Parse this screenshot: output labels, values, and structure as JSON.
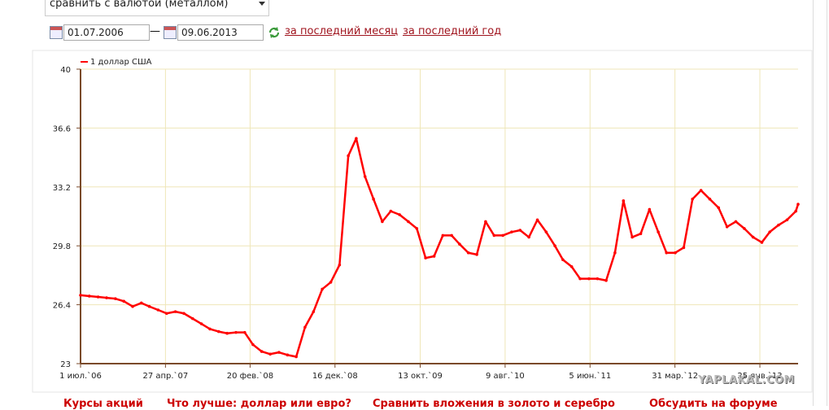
{
  "controls": {
    "compare_select": "сравнить с валютой (металлом)",
    "date_from": "01.07.2006",
    "date_separator": "—",
    "date_to": "09.06.2013",
    "links": [
      "за последний месяц",
      "за последний год"
    ]
  },
  "chart_data": {
    "type": "line",
    "x": [
      "2006-07-01",
      "2006-08-01",
      "2006-09-01",
      "2006-10-01",
      "2006-11-01",
      "2006-12-01",
      "2007-01-01",
      "2007-02-01",
      "2007-03-01",
      "2007-04-01",
      "2007-05-01",
      "2007-06-01",
      "2007-07-01",
      "2007-08-01",
      "2007-09-01",
      "2007-10-01",
      "2007-11-01",
      "2007-12-01",
      "2008-01-01",
      "2008-02-01",
      "2008-03-01",
      "2008-04-01",
      "2008-05-01",
      "2008-06-01",
      "2008-07-01",
      "2008-08-01",
      "2008-09-01",
      "2008-10-01",
      "2008-11-01",
      "2008-12-01",
      "2009-01-01",
      "2009-02-01",
      "2009-03-01",
      "2009-04-01",
      "2009-05-01",
      "2009-06-01",
      "2009-07-01",
      "2009-08-01",
      "2009-09-01",
      "2009-10-01",
      "2009-11-01",
      "2009-12-01",
      "2010-01-01",
      "2010-02-01",
      "2010-03-01",
      "2010-04-01",
      "2010-05-01",
      "2010-06-01",
      "2010-07-01",
      "2010-08-01",
      "2010-09-01",
      "2010-10-01",
      "2010-11-01",
      "2010-12-01",
      "2011-01-01",
      "2011-02-01",
      "2011-03-01",
      "2011-04-01",
      "2011-05-01",
      "2011-06-01",
      "2011-07-01",
      "2011-08-01",
      "2011-09-01",
      "2011-10-01",
      "2011-11-01",
      "2011-12-01",
      "2012-01-01",
      "2012-02-01",
      "2012-03-01",
      "2012-04-01",
      "2012-05-01",
      "2012-06-01",
      "2012-07-01",
      "2012-08-01",
      "2012-09-01",
      "2012-10-01",
      "2012-11-01",
      "2012-12-01",
      "2013-01-01",
      "2013-02-01",
      "2013-03-01",
      "2013-04-01",
      "2013-05-01",
      "2013-06-01",
      "2013-06-09"
    ],
    "series": [
      {
        "name": "1 доллар США",
        "color": "#ff0000",
        "values": [
          26.95,
          26.9,
          26.85,
          26.8,
          26.75,
          26.6,
          26.3,
          26.5,
          26.3,
          26.1,
          25.9,
          26.0,
          25.9,
          25.6,
          25.3,
          25.0,
          24.85,
          24.75,
          24.8,
          24.8,
          24.1,
          23.7,
          23.55,
          23.65,
          23.5,
          23.4,
          25.1,
          26.0,
          27.3,
          27.7,
          28.7,
          35.0,
          36.0,
          33.8,
          32.5,
          31.2,
          31.8,
          31.6,
          31.2,
          30.8,
          29.1,
          29.2,
          30.4,
          30.4,
          29.9,
          29.4,
          29.3,
          31.2,
          30.4,
          30.4,
          30.6,
          30.7,
          30.3,
          31.3,
          30.6,
          29.8,
          29.0,
          28.6,
          27.9,
          27.9,
          27.9,
          27.8,
          29.4,
          32.4,
          30.3,
          30.5,
          31.9,
          30.6,
          29.4,
          29.4,
          29.7,
          32.5,
          33.0,
          32.5,
          32.0,
          30.9,
          31.2,
          30.8,
          30.3,
          30.0,
          30.6,
          31.0,
          31.3,
          31.8,
          32.2
        ]
      }
    ],
    "xlim": [
      "2006-07-01",
      "2013-06-09"
    ],
    "xticks": [
      {
        "value": "2006-07-01",
        "label": "1 июл.`06"
      },
      {
        "value": "2007-04-27",
        "label": "27 апр.`07"
      },
      {
        "value": "2008-02-20",
        "label": "20 фев.`08"
      },
      {
        "value": "2008-12-16",
        "label": "16 дек.`08"
      },
      {
        "value": "2009-10-13",
        "label": "13 окт.`09"
      },
      {
        "value": "2010-08-09",
        "label": "9 авг.`10"
      },
      {
        "value": "2011-06-05",
        "label": "5 июн.`11"
      },
      {
        "value": "2012-03-31",
        "label": "31 мар.`12"
      },
      {
        "value": "2013-01-25",
        "label": "25 янв.`13"
      }
    ],
    "ylim": [
      23,
      40
    ],
    "yticks": [
      23,
      26.4,
      29.8,
      33.2,
      36.6,
      40
    ],
    "grid": true,
    "legend": "top-left"
  },
  "footer_links": [
    "Курсы акций",
    "Что лучше: доллар или евро?",
    "Сравнить вложения в золото и серебро",
    "Обсудить на форуме"
  ],
  "watermark": "YAPLAKAL.COM"
}
